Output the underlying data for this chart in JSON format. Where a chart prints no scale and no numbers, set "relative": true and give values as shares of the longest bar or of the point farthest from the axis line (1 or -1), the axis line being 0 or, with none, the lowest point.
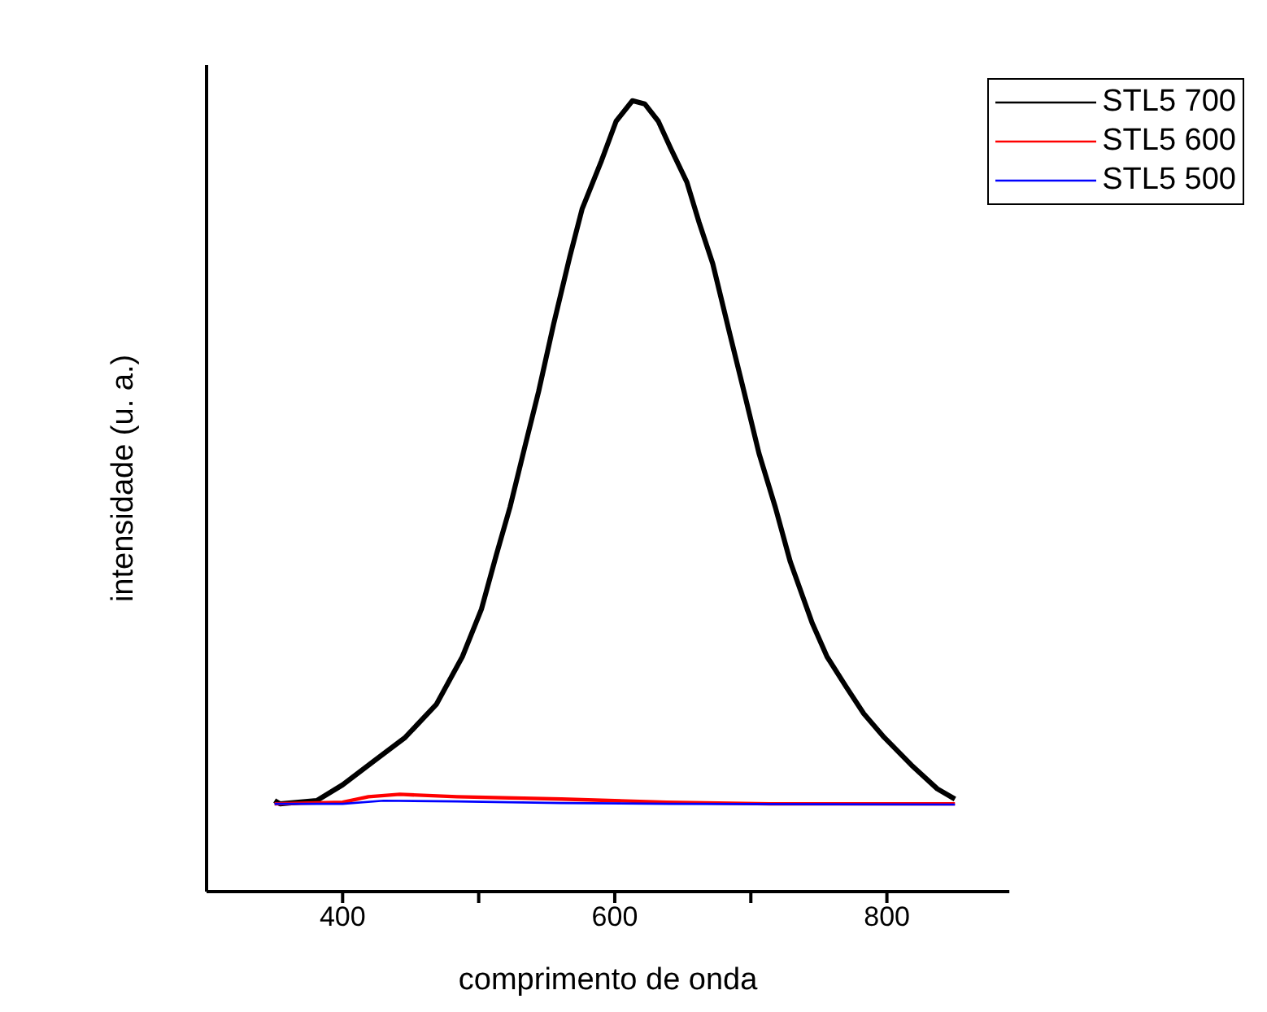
{
  "chart_data": {
    "type": "line",
    "relative": true,
    "xlabel": "comprimento de onda",
    "ylabel": "intensidade (u. a.)",
    "xlim": [
      300,
      890
    ],
    "xticks": [
      400,
      {
        "value": 500,
        "label": null
      },
      600,
      {
        "value": 700,
        "label": null
      },
      800
    ],
    "legend": "top right",
    "marker": "none",
    "line_style": "solid",
    "grid": false,
    "series": [
      {
        "name": "STL5 700",
        "color": "#000000",
        "x": [
          350,
          354,
          381,
          400,
          423,
          446,
          469,
          488,
          502,
          513,
          523,
          534,
          544,
          555,
          567,
          576,
          590,
          601,
          613,
          622,
          632,
          641,
          653,
          662,
          672,
          684,
          695,
          706,
          718,
          729,
          745,
          756,
          770,
          783,
          798,
          818,
          837,
          850
        ],
        "values": [
          0.115,
          0.111,
          0.115,
          0.135,
          0.165,
          0.195,
          0.237,
          0.297,
          0.357,
          0.426,
          0.486,
          0.563,
          0.632,
          0.717,
          0.803,
          0.863,
          0.923,
          0.974,
          1.0,
          0.996,
          0.974,
          0.94,
          0.897,
          0.846,
          0.794,
          0.709,
          0.632,
          0.554,
          0.486,
          0.417,
          0.34,
          0.297,
          0.259,
          0.225,
          0.195,
          0.16,
          0.13,
          0.117
        ]
      },
      {
        "name": "STL5 600",
        "color": "#ff0000",
        "x": [
          350,
          400,
          419,
          442,
          484,
          561,
          638,
          714,
          850
        ],
        "values": [
          0.111,
          0.113,
          0.12,
          0.123,
          0.12,
          0.117,
          0.113,
          0.111,
          0.111
        ]
      },
      {
        "name": "STL5 500",
        "color": "#0000ff",
        "x": [
          350,
          400,
          430,
          484,
          560,
          640,
          850
        ],
        "values": [
          0.111,
          0.111,
          0.115,
          0.114,
          0.112,
          0.111,
          0.11
        ]
      }
    ]
  }
}
